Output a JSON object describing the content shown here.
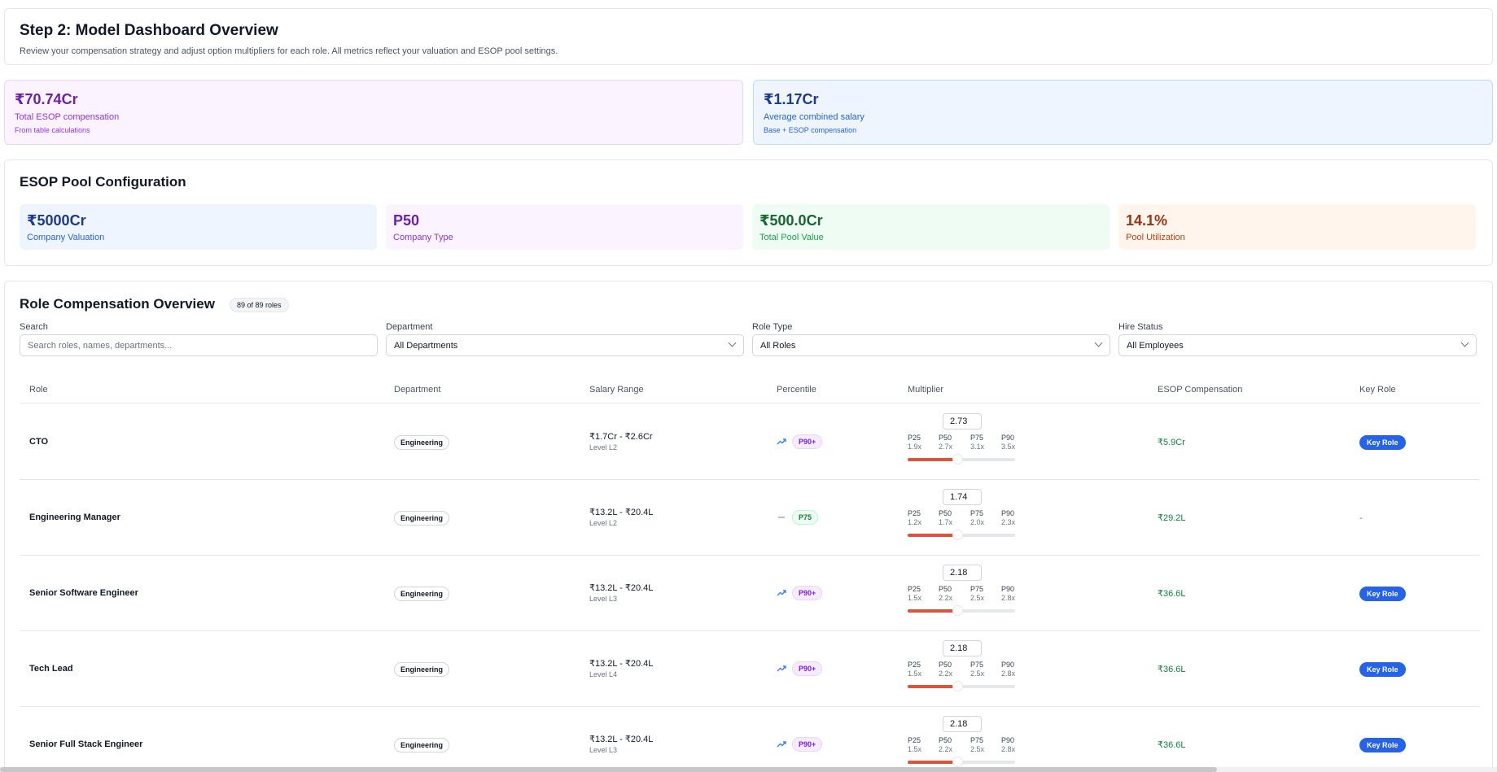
{
  "header": {
    "title": "Step 2: Model Dashboard Overview",
    "subtitle": "Review your compensation strategy and adjust option multipliers for each role. All metrics reflect your valuation and ESOP pool settings."
  },
  "summary": {
    "esop": {
      "value": "₹70.74Cr",
      "label": "Total ESOP compensation",
      "sub": "From table calculations"
    },
    "salary": {
      "value": "₹1.17Cr",
      "label": "Average combined salary",
      "sub": "Base + ESOP compensation"
    }
  },
  "pool": {
    "title": "ESOP Pool Configuration",
    "valuation": {
      "value": "₹5000Cr",
      "label": "Company Valuation"
    },
    "type": {
      "value": "P50",
      "label": "Company Type"
    },
    "total": {
      "value": "₹500.0Cr",
      "label": "Total Pool Value"
    },
    "utilization": {
      "value": "14.1%",
      "label": "Pool Utilization"
    }
  },
  "roles": {
    "title": "Role Compensation Overview",
    "count": "89 of 89 roles",
    "filters": {
      "search_label": "Search",
      "search_placeholder": "Search roles, names, departments...",
      "department_label": "Department",
      "department_value": "All Departments",
      "role_type_label": "Role Type",
      "role_type_value": "All Roles",
      "hire_status_label": "Hire Status",
      "hire_status_value": "All Employees"
    },
    "columns": [
      "Role",
      "Department",
      "Salary Range",
      "Percentile",
      "Multiplier",
      "ESOP Compensation",
      "Key Role"
    ],
    "percentile_labels": [
      "P25",
      "P50",
      "P75",
      "P90"
    ],
    "rows": [
      {
        "role": "CTO",
        "department": "Engineering",
        "salary_range": "₹1.7Cr - ₹2.6Cr",
        "level": "Level L2",
        "trend": "up",
        "percentile": "P90+",
        "multiplier": "2.73",
        "p_values": [
          "1.9x",
          "2.7x",
          "3.1x",
          "3.5x"
        ],
        "slider_fraction": 0.43,
        "esop": "₹5.9Cr",
        "key_role": "Key Role"
      },
      {
        "role": "Engineering Manager",
        "department": "Engineering",
        "salary_range": "₹13.2L - ₹20.4L",
        "level": "Level L2",
        "trend": "flat",
        "percentile": "P75",
        "multiplier": "1.74",
        "p_values": [
          "1.2x",
          "1.7x",
          "2.0x",
          "2.3x"
        ],
        "slider_fraction": 0.43,
        "esop": "₹29.2L",
        "key_role": "-"
      },
      {
        "role": "Senior Software Engineer",
        "department": "Engineering",
        "salary_range": "₹13.2L - ₹20.4L",
        "level": "Level L3",
        "trend": "up",
        "percentile": "P90+",
        "multiplier": "2.18",
        "p_values": [
          "1.5x",
          "2.2x",
          "2.5x",
          "2.8x"
        ],
        "slider_fraction": 0.43,
        "esop": "₹36.6L",
        "key_role": "Key Role"
      },
      {
        "role": "Tech Lead",
        "department": "Engineering",
        "salary_range": "₹13.2L - ₹20.4L",
        "level": "Level L4",
        "trend": "up",
        "percentile": "P90+",
        "multiplier": "2.18",
        "p_values": [
          "1.5x",
          "2.2x",
          "2.5x",
          "2.8x"
        ],
        "slider_fraction": 0.43,
        "esop": "₹36.6L",
        "key_role": "Key Role"
      },
      {
        "role": "Senior Full Stack Engineer",
        "department": "Engineering",
        "salary_range": "₹13.2L - ₹20.4L",
        "level": "Level L3",
        "trend": "up",
        "percentile": "P90+",
        "multiplier": "2.18",
        "p_values": [
          "1.5x",
          "2.2x",
          "2.5x",
          "2.8x"
        ],
        "slider_fraction": 0.43,
        "esop": "₹36.6L",
        "key_role": "Key Role"
      }
    ]
  },
  "colors": {
    "accent": "#2563eb",
    "slider": "#e0533a",
    "esop_green": "#15803d"
  }
}
